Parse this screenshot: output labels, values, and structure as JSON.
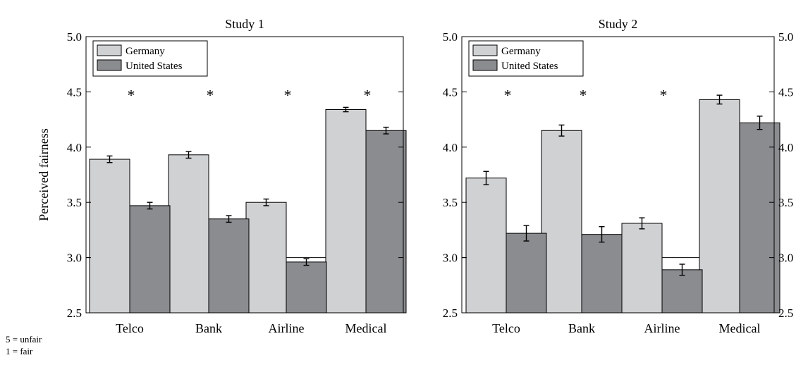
{
  "notes": {
    "line1": "5 = unfair",
    "line2": "1 = fair"
  },
  "colors": {
    "germany": "#cfd1d3",
    "united_states": "#8a8c8f",
    "frame": "#000000"
  },
  "chart_data": [
    {
      "type": "bar",
      "title": "Study 1",
      "ylabel": "Perceived fairness",
      "xlabel": "",
      "categories": [
        "Telco",
        "Bank",
        "Airline",
        "Medical"
      ],
      "ylim": [
        2.5,
        5.0
      ],
      "yticks": [
        "2.5",
        "3.0",
        "3.5",
        "4.0",
        "4.5",
        "5.0"
      ],
      "reference_line": 3.0,
      "legend_position": "top-left",
      "series": [
        {
          "name": "Germany",
          "values": [
            3.89,
            3.93,
            3.5,
            4.34
          ],
          "errors": [
            0.03,
            0.03,
            0.03,
            0.02
          ]
        },
        {
          "name": "United States",
          "values": [
            3.47,
            3.35,
            2.96,
            4.15
          ],
          "errors": [
            0.03,
            0.03,
            0.03,
            0.03
          ]
        }
      ],
      "significance": [
        "*",
        "*",
        "*",
        "*"
      ]
    },
    {
      "type": "bar",
      "title": "Study 2",
      "ylabel": "",
      "xlabel": "",
      "categories": [
        "Telco",
        "Bank",
        "Airline",
        "Medical"
      ],
      "ylim": [
        2.5,
        5.0
      ],
      "yticks": [
        "2.5",
        "3.0",
        "3.5",
        "4.0",
        "4.5",
        "5.0"
      ],
      "reference_line": 3.0,
      "legend_position": "top-left",
      "series": [
        {
          "name": "Germany",
          "values": [
            3.72,
            4.15,
            3.31,
            4.43
          ],
          "errors": [
            0.06,
            0.05,
            0.05,
            0.04
          ]
        },
        {
          "name": "United States",
          "values": [
            3.22,
            3.21,
            2.89,
            4.22
          ],
          "errors": [
            0.07,
            0.07,
            0.05,
            0.06
          ]
        }
      ],
      "significance": [
        "*",
        "*",
        "*",
        ""
      ]
    }
  ]
}
